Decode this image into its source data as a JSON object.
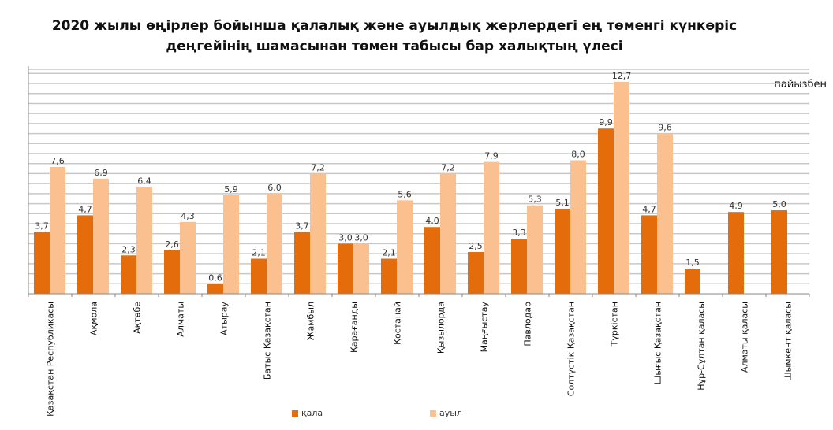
{
  "chart_data": {
    "type": "bar",
    "title_line1": "2020 жылы өңірлер бойынша қалалық және ауылдық жерлердегі ең төменгі күнкөріс",
    "title_line2": "деңгейінің шамасынан төмен табысы бар халықтың үлесі",
    "unit_label": "пайызбен",
    "categories": [
      "Қазақстан Республикасы",
      "Ақмола",
      "Ақтөбе",
      "Алматы",
      "Атырау",
      "Батыс Қазақстан",
      "Жамбыл",
      "Қарағанды",
      "Қостанай",
      "Қызылорда",
      "Маңғыстау",
      "Павлодар",
      "Солтүстік Қазақстан",
      "Түркістан",
      "Шығыс Қазақстан",
      "Нұр-Сұлтан қаласы",
      "Алматы қаласы",
      "Шымкент қаласы"
    ],
    "series": [
      {
        "name": "қала",
        "color": "#E46C0A",
        "values": [
          3.7,
          4.7,
          2.3,
          2.6,
          0.6,
          2.1,
          3.7,
          3.0,
          2.1,
          4.0,
          2.5,
          3.3,
          5.1,
          9.9,
          4.7,
          1.5,
          4.9,
          5.0
        ],
        "labels": [
          "3,7",
          "4,7",
          "2,3",
          "2,6",
          "0,6",
          "2,1",
          "3,7",
          "3,0",
          "2,1",
          "4,0",
          "2,5",
          "3,3",
          "5,1",
          "9,9",
          "4,7",
          "1,5",
          "4,9",
          "5,0"
        ]
      },
      {
        "name": "ауыл",
        "color": "#FAC090",
        "values": [
          7.6,
          6.9,
          6.4,
          4.3,
          5.9,
          6.0,
          7.2,
          3.0,
          5.6,
          7.2,
          7.9,
          5.3,
          8.0,
          12.7,
          9.6,
          null,
          null,
          null
        ],
        "labels": [
          "7,6",
          "6,9",
          "6,4",
          "4,3",
          "5,9",
          "6,0",
          "7,2",
          "3,0",
          "5,6",
          "7,2",
          "7,9",
          "5,3",
          "8,0",
          "12,7",
          "9,6",
          null,
          null,
          null
        ]
      }
    ],
    "ylim": [
      0,
      13.45
    ],
    "grid": true,
    "legend": "bottom"
  }
}
